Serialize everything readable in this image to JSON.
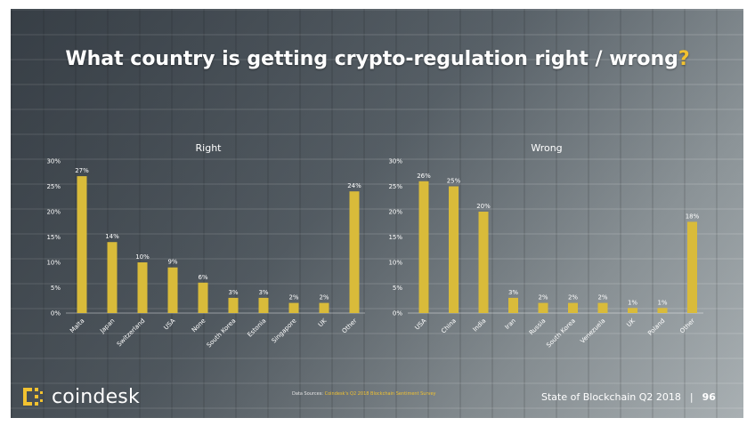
{
  "slide": {
    "title": "What country is getting crypto-regulation right / wrong",
    "title_mark": "?",
    "brand": "coindesk",
    "source_prefix": "Data Sources: ",
    "source_highlight": "Coindesk's Q2 2018 Blockchain Sentiment Survey",
    "report_name": "State of Blockchain Q2 2018",
    "separator": "|",
    "page_number": "96",
    "colors": {
      "accent": "#f2c230",
      "bar": "#d9bb3a",
      "text": "#ffffff"
    },
    "icons": [
      "coindesk-logo-icon"
    ]
  },
  "chart_data": [
    {
      "type": "bar",
      "title": "Right",
      "categories": [
        "Malta",
        "Japan",
        "Switzerland",
        "USA",
        "None",
        "South Korea",
        "Estonia",
        "Singapore",
        "UK",
        "Other"
      ],
      "values": [
        27,
        14,
        10,
        9,
        6,
        3,
        3,
        2,
        2,
        24
      ],
      "labels": [
        "27%",
        "14%",
        "10%",
        "9%",
        "6%",
        "3%",
        "3%",
        "2%",
        "2%",
        "24%"
      ],
      "yticks": [
        "0%",
        "5%",
        "10%",
        "15%",
        "20%",
        "25%",
        "30%"
      ],
      "ylim": [
        0,
        30
      ],
      "grid": false
    },
    {
      "type": "bar",
      "title": "Wrong",
      "categories": [
        "USA",
        "China",
        "India",
        "Iran",
        "Russia",
        "South Korea",
        "Venezuela",
        "UK",
        "Poland",
        "Other"
      ],
      "values": [
        26,
        25,
        20,
        3,
        2,
        2,
        2,
        1,
        1,
        18
      ],
      "labels": [
        "26%",
        "25%",
        "20%",
        "3%",
        "2%",
        "2%",
        "2%",
        "1%",
        "1%",
        "18%"
      ],
      "yticks": [
        "0%",
        "5%",
        "10%",
        "15%",
        "20%",
        "25%",
        "30%"
      ],
      "ylim": [
        0,
        30
      ],
      "grid": false
    }
  ]
}
